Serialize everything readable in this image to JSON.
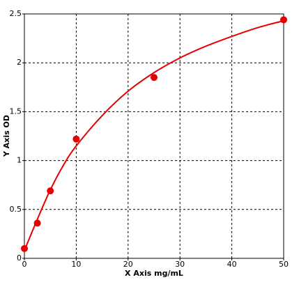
{
  "chart_data": {
    "type": "scatter",
    "x_label": "X Axis mg/mL",
    "y_label": "Y Axis OD",
    "points": {
      "x": [
        0,
        2.5,
        5,
        10,
        25,
        50
      ],
      "y": [
        0.1,
        0.36,
        0.69,
        1.22,
        1.85,
        2.44
      ],
      "color": "#e60000"
    },
    "fit_curve": {
      "x": [
        0,
        2.5,
        5,
        7.5,
        10,
        15,
        20,
        25,
        30,
        35,
        40,
        45,
        50
      ],
      "y": [
        0.08,
        0.4,
        0.7,
        0.95,
        1.15,
        1.46,
        1.71,
        1.9,
        2.05,
        2.17,
        2.27,
        2.36,
        2.43
      ],
      "color": "#e60000"
    },
    "xlim": [
      0,
      50
    ],
    "ylim": [
      0,
      2.5
    ],
    "xticks": [
      0,
      10,
      20,
      30,
      40,
      50
    ],
    "yticks": [
      0,
      0.5,
      1,
      1.5,
      2,
      2.5
    ],
    "grid": true
  }
}
